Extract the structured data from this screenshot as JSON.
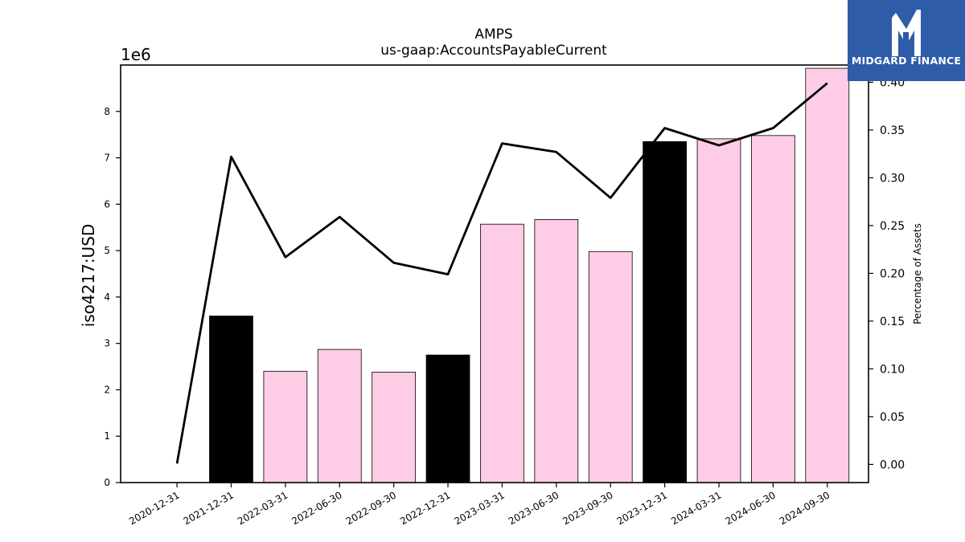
{
  "chart_data": {
    "type": "bar",
    "title": "AMPS",
    "subtitle": "us-gaap:AccountsPayableCurrent",
    "ylabel": "iso4217:USD",
    "y2label": "Percentage of Assets",
    "y_offset_label": "1e6",
    "ylim": [
      0,
      9000000
    ],
    "y2lim": [
      -0.019,
      0.418
    ],
    "y_ticks": [
      "0",
      "1",
      "2",
      "3",
      "4",
      "5",
      "6",
      "7",
      "8"
    ],
    "y2_ticks": [
      "0.00",
      "0.05",
      "0.10",
      "0.15",
      "0.20",
      "0.25",
      "0.30",
      "0.35",
      "0.40"
    ],
    "categories": [
      "2020-12-31",
      "2021-12-31",
      "2022-03-31",
      "2022-06-30",
      "2022-09-30",
      "2022-12-31",
      "2023-03-31",
      "2023-06-30",
      "2023-09-30",
      "2023-12-31",
      "2024-03-31",
      "2024-06-30",
      "2024-09-30"
    ],
    "series": [
      {
        "kind": "bar",
        "values": [
          null,
          3590000,
          2400000,
          2870000,
          2380000,
          2750000,
          5570000,
          5670000,
          4980000,
          7350000,
          7410000,
          7480000,
          8930000
        ],
        "colors": [
          "#000000",
          "#000000",
          "#ffcce6",
          "#ffcce6",
          "#ffcce6",
          "#000000",
          "#ffcce6",
          "#ffcce6",
          "#ffcce6",
          "#000000",
          "#ffcce6",
          "#ffcce6",
          "#ffcce6"
        ]
      },
      {
        "kind": "line",
        "axis": "right",
        "color": "#000000",
        "values": [
          0.001,
          0.322,
          0.217,
          0.259,
          0.211,
          0.199,
          0.336,
          0.327,
          0.279,
          0.352,
          0.334,
          0.352,
          0.399
        ]
      }
    ],
    "grid": false,
    "legend": "none"
  },
  "logo": {
    "text": "MIDGARD FINANCE",
    "background": "#2e5ca8"
  }
}
